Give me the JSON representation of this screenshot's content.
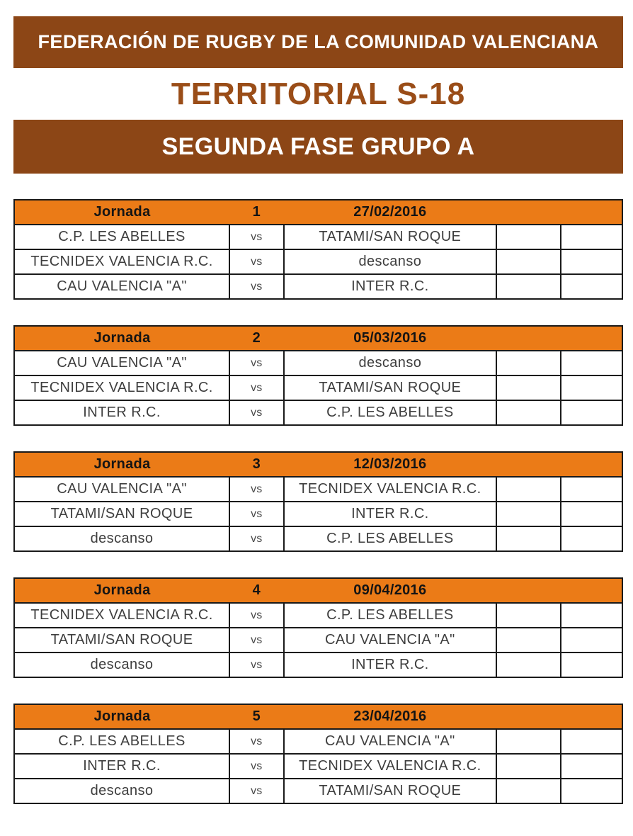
{
  "page": {
    "federation_banner": "FEDERACIÓN DE RUGBY DE LA COMUNIDAD VALENCIANA",
    "title": "TERRITORIAL S-18",
    "phase_banner": "SEGUNDA FASE GRUPO A"
  },
  "colors": {
    "banner_brown": "#8C4616",
    "title_brown": "#9A4D18",
    "header_orange": "#EB7B17",
    "table_border": "#1A1A1A",
    "body_text": "#3E3E3E"
  },
  "labels": {
    "jornada": "Jornada",
    "vs": "vs"
  },
  "jornadas": [
    {
      "number": "1",
      "date": "27/02/2016",
      "matches": [
        {
          "home": "C.P. LES ABELLES",
          "away": "TATAMI/SAN ROQUE",
          "home_score": "",
          "away_score": ""
        },
        {
          "home": "TECNIDEX VALENCIA R.C.",
          "away": "descanso",
          "home_score": "",
          "away_score": ""
        },
        {
          "home": "CAU VALENCIA \"A\"",
          "away": "INTER R.C.",
          "home_score": "",
          "away_score": ""
        }
      ]
    },
    {
      "number": "2",
      "date": "05/03/2016",
      "matches": [
        {
          "home": "CAU VALENCIA \"A\"",
          "away": "descanso",
          "home_score": "",
          "away_score": ""
        },
        {
          "home": "TECNIDEX VALENCIA R.C.",
          "away": "TATAMI/SAN ROQUE",
          "home_score": "",
          "away_score": ""
        },
        {
          "home": "INTER R.C.",
          "away": "C.P. LES ABELLES",
          "home_score": "",
          "away_score": ""
        }
      ]
    },
    {
      "number": "3",
      "date": "12/03/2016",
      "matches": [
        {
          "home": "CAU VALENCIA \"A\"",
          "away": "TECNIDEX VALENCIA R.C.",
          "home_score": "",
          "away_score": ""
        },
        {
          "home": "TATAMI/SAN ROQUE",
          "away": "INTER R.C.",
          "home_score": "",
          "away_score": ""
        },
        {
          "home": "descanso",
          "away": "C.P. LES ABELLES",
          "home_score": "",
          "away_score": ""
        }
      ]
    },
    {
      "number": "4",
      "date": "09/04/2016",
      "matches": [
        {
          "home": "TECNIDEX VALENCIA R.C.",
          "away": "C.P. LES ABELLES",
          "home_score": "",
          "away_score": ""
        },
        {
          "home": "TATAMI/SAN ROQUE",
          "away": "CAU VALENCIA \"A\"",
          "home_score": "",
          "away_score": ""
        },
        {
          "home": "descanso",
          "away": "INTER R.C.",
          "home_score": "",
          "away_score": ""
        }
      ]
    },
    {
      "number": "5",
      "date": "23/04/2016",
      "matches": [
        {
          "home": "C.P. LES ABELLES",
          "away": "CAU VALENCIA \"A\"",
          "home_score": "",
          "away_score": ""
        },
        {
          "home": "INTER R.C.",
          "away": "TECNIDEX VALENCIA R.C.",
          "home_score": "",
          "away_score": ""
        },
        {
          "home": "descanso",
          "away": "TATAMI/SAN ROQUE",
          "home_score": "",
          "away_score": ""
        }
      ]
    }
  ]
}
